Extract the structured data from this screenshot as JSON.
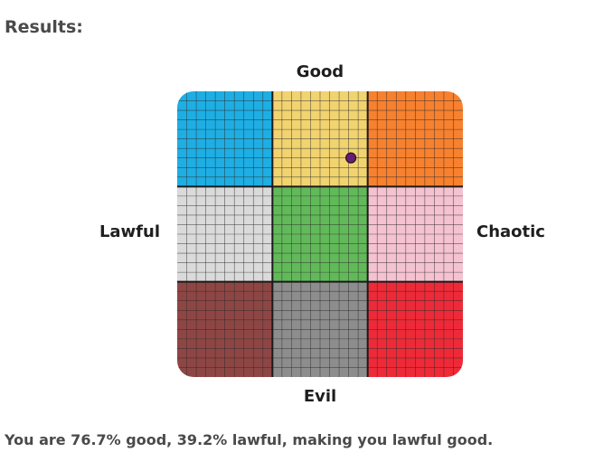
{
  "header": {
    "title": "Results:"
  },
  "alignment_chart": {
    "labels": {
      "top": "Good",
      "bottom": "Evil",
      "left": "Lawful",
      "right": "Chaotic"
    },
    "cells": [
      {
        "row": 0,
        "col": 0,
        "color": "#1eaee3"
      },
      {
        "row": 0,
        "col": 1,
        "color": "#f1d370"
      },
      {
        "row": 0,
        "col": 2,
        "color": "#f7812f"
      },
      {
        "row": 1,
        "col": 0,
        "color": "#dadada"
      },
      {
        "row": 1,
        "col": 1,
        "color": "#62b95a"
      },
      {
        "row": 1,
        "col": 2,
        "color": "#f4c2d0"
      },
      {
        "row": 2,
        "col": 0,
        "color": "#8e4644"
      },
      {
        "row": 2,
        "col": 1,
        "color": "#8d8d8d"
      },
      {
        "row": 2,
        "col": 2,
        "color": "#ee2a38"
      }
    ],
    "marker": {
      "good_percent": 76.7,
      "lawful_percent": 39.2,
      "color": "#6a1b7a"
    }
  },
  "result": {
    "text": "You are 76.7% good, 39.2% lawful, making you lawful good."
  }
}
